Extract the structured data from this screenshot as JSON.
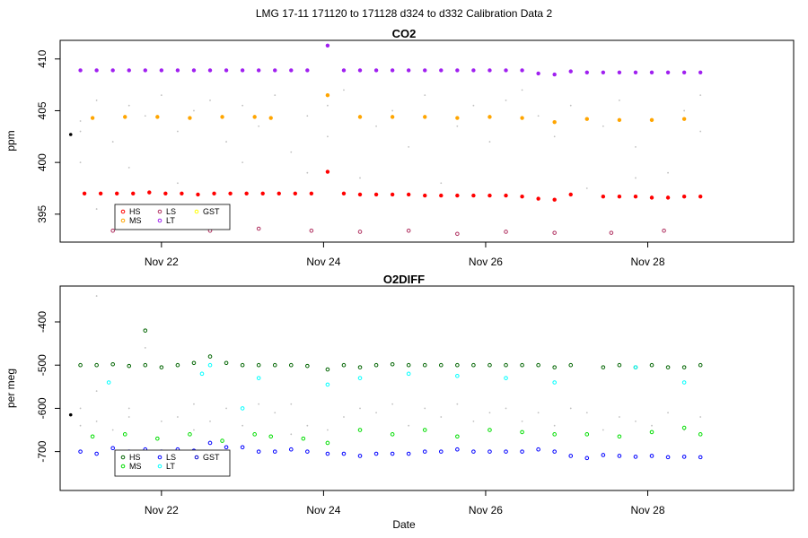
{
  "figure": {
    "title": "LMG   17-11    171120 to 171128    d324 to d332   Calibration Data 2",
    "xlabel": "Date"
  },
  "chart_data": [
    {
      "type": "scatter",
      "title": "CO2",
      "xlabel": "",
      "ylabel": "ppm",
      "xlim": [
        20.75,
        29.8
      ],
      "ylim": [
        392.3,
        411.8
      ],
      "yticks": [
        395,
        400,
        405,
        410
      ],
      "xticks": [
        {
          "label": "Nov 22",
          "value": 22
        },
        {
          "label": "Nov 24",
          "value": 24
        },
        {
          "label": "Nov 26",
          "value": 26
        },
        {
          "label": "Nov 28",
          "value": 28
        }
      ],
      "legend": {
        "position": "bottom-left",
        "entries": [
          "HS",
          "MS",
          "LS",
          "LT",
          "GST"
        ]
      },
      "colors": {
        "HS": "#ff0000",
        "MS": "#ffa500",
        "LS": "#b03060",
        "LT": "#a020f0",
        "GST": "#ffff00",
        "raw": "#c0c0c0"
      },
      "series": [
        {
          "name": "HS",
          "x": [
            21.05,
            21.25,
            21.45,
            21.65,
            21.85,
            22.05,
            22.25,
            22.45,
            22.65,
            22.85,
            23.05,
            23.25,
            23.45,
            23.65,
            23.85,
            24.05,
            24.25,
            24.45,
            24.65,
            24.85,
            25.05,
            25.25,
            25.45,
            25.65,
            25.85,
            26.05,
            26.25,
            26.45,
            26.65,
            26.85,
            27.05,
            27.45,
            27.65,
            27.85,
            28.05,
            28.25,
            28.45,
            28.65
          ],
          "y": [
            397.0,
            397.0,
            397.0,
            397.0,
            397.1,
            397.0,
            397.0,
            396.9,
            397.0,
            397.0,
            397.0,
            397.0,
            397.0,
            397.0,
            397.0,
            399.1,
            397.0,
            396.9,
            396.9,
            396.9,
            396.9,
            396.8,
            396.8,
            396.8,
            396.8,
            396.8,
            396.8,
            396.7,
            396.5,
            396.4,
            396.9,
            396.7,
            396.7,
            396.7,
            396.6,
            396.6,
            396.7,
            396.7
          ]
        },
        {
          "name": "MS",
          "x": [
            21.15,
            21.55,
            21.95,
            22.35,
            22.75,
            23.15,
            23.35,
            24.05,
            24.45,
            24.85,
            25.25,
            25.65,
            26.05,
            26.45,
            26.85,
            27.25,
            27.65,
            28.05,
            28.45
          ],
          "y": [
            404.3,
            404.4,
            404.4,
            404.3,
            404.4,
            404.4,
            404.3,
            406.5,
            404.4,
            404.4,
            404.4,
            404.3,
            404.4,
            404.3,
            403.9,
            404.2,
            404.1,
            404.1,
            404.2
          ]
        },
        {
          "name": "LS",
          "x": [
            21.4,
            22.6,
            23.2,
            23.85,
            24.45,
            25.05,
            25.65,
            26.25,
            26.85,
            27.55,
            28.2
          ],
          "y": [
            393.4,
            393.4,
            393.6,
            393.4,
            393.3,
            393.4,
            393.1,
            393.3,
            393.2,
            393.2,
            393.4
          ]
        },
        {
          "name": "LT",
          "x": [
            21.0,
            21.2,
            21.4,
            21.6,
            21.8,
            22.0,
            22.2,
            22.4,
            22.6,
            22.8,
            23.0,
            23.2,
            23.4,
            23.6,
            23.8,
            24.05,
            24.25,
            24.45,
            24.65,
            24.85,
            25.05,
            25.25,
            25.45,
            25.65,
            25.85,
            26.05,
            26.25,
            26.45,
            26.65,
            26.85,
            27.05,
            27.25,
            27.45,
            27.65,
            27.85,
            28.05,
            28.25,
            28.45,
            28.65
          ],
          "y": [
            408.9,
            408.9,
            408.9,
            408.9,
            408.9,
            408.9,
            408.9,
            408.9,
            408.9,
            408.9,
            408.9,
            408.9,
            408.9,
            408.9,
            408.9,
            411.3,
            408.9,
            408.9,
            408.9,
            408.9,
            408.9,
            408.9,
            408.9,
            408.9,
            408.9,
            408.9,
            408.9,
            408.9,
            408.6,
            408.5,
            408.8,
            408.7,
            408.7,
            408.7,
            408.7,
            408.7,
            408.7,
            408.7,
            408.7
          ]
        },
        {
          "name": "raw",
          "x": [
            21.0,
            21.0,
            21.0,
            21.2,
            21.2,
            21.4,
            21.6,
            21.6,
            21.8,
            21.8,
            22.0,
            22.2,
            22.2,
            22.4,
            22.4,
            22.6,
            22.8,
            23.0,
            23.0,
            23.2,
            23.4,
            23.6,
            23.8,
            23.8,
            24.05,
            24.05,
            24.25,
            24.45,
            24.65,
            24.85,
            25.05,
            25.25,
            25.45,
            25.65,
            25.85,
            26.05,
            26.25,
            26.45,
            26.65,
            26.65,
            26.85,
            27.05,
            27.25,
            27.45,
            27.65,
            27.85,
            27.85,
            28.05,
            28.25,
            28.45,
            28.65,
            28.65
          ],
          "y": [
            404.0,
            403.0,
            400.0,
            406.0,
            395.5,
            402.0,
            405.5,
            399.5,
            404.5,
            395.0,
            406.5,
            403.0,
            398.0,
            405.0,
            395.8,
            406.0,
            402.0,
            405.5,
            400.0,
            403.5,
            406.5,
            401.0,
            404.5,
            399.0,
            405.5,
            402.5,
            407.0,
            398.5,
            403.5,
            405.0,
            401.5,
            406.5,
            398.0,
            403.5,
            405.5,
            402.0,
            406.0,
            407.0,
            404.5,
            396.5,
            402.5,
            405.5,
            397.5,
            403.5,
            406.0,
            401.5,
            398.5,
            404.0,
            399.0,
            405.0,
            406.5,
            403.0
          ]
        }
      ],
      "extra": {
        "x": 20.88,
        "y": 402.7
      }
    },
    {
      "type": "scatter",
      "title": "O2DIFF",
      "xlabel": "Date",
      "ylabel": "per meg",
      "xlim": [
        20.75,
        29.8
      ],
      "ylim": [
        -790,
        -317
      ],
      "yticks": [
        -700,
        -600,
        -500,
        -400
      ],
      "xticks": [
        {
          "label": "Nov 22",
          "value": 22
        },
        {
          "label": "Nov 24",
          "value": 24
        },
        {
          "label": "Nov 26",
          "value": 26
        },
        {
          "label": "Nov 28",
          "value": 28
        }
      ],
      "legend": {
        "position": "bottom-left",
        "entries": [
          "HS",
          "MS",
          "LS",
          "LT",
          "GST"
        ]
      },
      "colors": {
        "HS": "#006400",
        "MS": "#00dd00",
        "LS": "#0000ff",
        "LT": "#00ffff",
        "GST": "#0000cd",
        "raw": "#c0c0c0"
      },
      "series": [
        {
          "name": "HS",
          "x": [
            21.0,
            21.2,
            21.4,
            21.6,
            21.8,
            21.8,
            22.0,
            22.2,
            22.4,
            22.6,
            22.8,
            23.0,
            23.2,
            23.4,
            23.6,
            23.8,
            24.05,
            24.25,
            24.45,
            24.65,
            24.85,
            25.05,
            25.25,
            25.45,
            25.65,
            25.85,
            26.05,
            26.25,
            26.45,
            26.65,
            26.85,
            27.05,
            27.45,
            27.65,
            27.85,
            28.05,
            28.25,
            28.45,
            28.65
          ],
          "y": [
            -500,
            -500,
            -498,
            -502,
            -500,
            -420,
            -505,
            -500,
            -495,
            -480,
            -495,
            -500,
            -500,
            -500,
            -500,
            -502,
            -510,
            -500,
            -505,
            -500,
            -498,
            -500,
            -500,
            -500,
            -500,
            -500,
            -500,
            -500,
            -500,
            -500,
            -505,
            -500,
            -505,
            -500,
            -505,
            -500,
            -505,
            -505,
            -500
          ]
        },
        {
          "name": "MS",
          "x": [
            21.15,
            21.55,
            21.95,
            22.35,
            22.75,
            23.15,
            23.35,
            23.75,
            24.05,
            24.45,
            24.85,
            25.25,
            25.65,
            26.05,
            26.45,
            26.85,
            27.25,
            27.65,
            28.05,
            28.45,
            28.65
          ],
          "y": [
            -665,
            -660,
            -670,
            -660,
            -675,
            -660,
            -665,
            -670,
            -680,
            -650,
            -660,
            -650,
            -665,
            -650,
            -655,
            -660,
            -660,
            -665,
            -655,
            -645,
            -660
          ]
        },
        {
          "name": "LS",
          "x": [
            21.0,
            21.2,
            21.4,
            21.6,
            21.8,
            22.0,
            22.2,
            22.4,
            22.6,
            22.8,
            23.0,
            23.2,
            23.4,
            23.6,
            23.8,
            24.05,
            24.25,
            24.45,
            24.65,
            24.85,
            25.05,
            25.25,
            25.45,
            25.65,
            25.85,
            26.05,
            26.25,
            26.45,
            26.65,
            26.85,
            27.05,
            27.25,
            27.45,
            27.65,
            27.85,
            28.05,
            28.25,
            28.45,
            28.65
          ],
          "y": [
            -700,
            -705,
            -692,
            -700,
            -695,
            -700,
            -695,
            -698,
            -680,
            -690,
            -690,
            -700,
            -700,
            -695,
            -700,
            -705,
            -705,
            -710,
            -705,
            -705,
            -705,
            -700,
            -700,
            -695,
            -700,
            -700,
            -700,
            -700,
            -695,
            -700,
            -710,
            -715,
            -708,
            -710,
            -712,
            -710,
            -713,
            -712,
            -713
          ]
        },
        {
          "name": "LT",
          "x": [
            21.35,
            22.5,
            22.6,
            23.0,
            23.2,
            24.05,
            24.45,
            25.05,
            25.65,
            26.25,
            26.85,
            27.85,
            28.45
          ],
          "y": [
            -540,
            -520,
            -500,
            -600,
            -530,
            -545,
            -530,
            -520,
            -525,
            -530,
            -540,
            -505,
            -540
          ]
        },
        {
          "name": "raw",
          "x": [
            21.0,
            21.0,
            21.2,
            21.2,
            21.2,
            21.4,
            21.6,
            21.6,
            21.8,
            22.0,
            22.2,
            22.4,
            22.4,
            22.6,
            22.8,
            23.0,
            23.2,
            23.4,
            23.6,
            23.6,
            23.8,
            24.05,
            24.25,
            24.45,
            24.65,
            24.85,
            25.05,
            25.25,
            25.45,
            25.65,
            25.85,
            26.05,
            26.25,
            26.45,
            26.65,
            26.85,
            27.05,
            27.25,
            27.45,
            27.65,
            27.85,
            28.05,
            28.25,
            28.45,
            28.65
          ],
          "y": [
            -640,
            -600,
            -340,
            -560,
            -630,
            -650,
            -620,
            -600,
            -460,
            -630,
            -620,
            -590,
            -650,
            -630,
            -600,
            -640,
            -590,
            -610,
            -590,
            -660,
            -640,
            -650,
            -620,
            -600,
            -610,
            -590,
            -640,
            -600,
            -620,
            -590,
            -630,
            -610,
            -600,
            -630,
            -610,
            -640,
            -600,
            -610,
            -650,
            -620,
            -630,
            -640,
            -610,
            -650,
            -620
          ]
        }
      ],
      "extra": {
        "x": 20.88,
        "y": -615
      }
    }
  ]
}
